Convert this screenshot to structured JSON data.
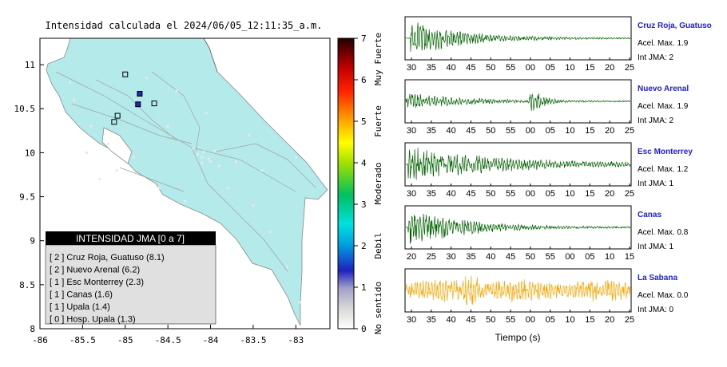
{
  "map": {
    "title": "Intensidad calculada el 2024/06/05_12:11:35_a.m.",
    "x_ticks": [
      "-86",
      "-85.5",
      "-85",
      "-84.5",
      "-84",
      "-83.5",
      "-83"
    ],
    "y_ticks": [
      "11",
      "10.5",
      "10",
      "9.5",
      "9",
      "8.5",
      "8"
    ],
    "colorbar": {
      "ticks": [
        "0",
        "1",
        "2",
        "3",
        "4",
        "5",
        "6",
        "7"
      ],
      "labels": [
        "No sentido",
        "Debil",
        "Moderado",
        "Fuerte",
        "Muy Fuerte"
      ]
    },
    "legend": {
      "title": "INTENSIDAD JMA [0 a 7]",
      "items": [
        "[ 2 ] Cruz Roja, Guatuso (8.1)",
        "[ 2 ] Nuevo Arenal (6.2)",
        "[ 1 ] Esc Monterrey (2.3)",
        "[ 1 ] Canas (1.6)",
        "[ 1 ] Upala (1.4)",
        "[ 0 ] Hosp. Upala (1.3)"
      ]
    },
    "colors": {
      "land": "#b4eaea",
      "border": "#777777",
      "legend_header": "#000000",
      "legend_body": "#e0e0e0"
    }
  },
  "chart_data": [
    {
      "type": "scatter",
      "title": "Intensidad calculada el 2024/06/05_12:11:35_a.m.",
      "xlim": [
        -86,
        -82.6
      ],
      "ylim": [
        8,
        11.3
      ],
      "series": [
        {
          "values": [
            {
              "x": -85.0,
              "y": 10.89,
              "intensity": 0
            },
            {
              "x": -84.83,
              "y": 10.67,
              "intensity": 2
            },
            {
              "x": -84.85,
              "y": 10.55,
              "intensity": 2
            },
            {
              "x": -84.66,
              "y": 10.56,
              "intensity": 1
            },
            {
              "x": -85.09,
              "y": 10.42,
              "intensity": 1
            },
            {
              "x": -85.13,
              "y": 10.35,
              "intensity": 1
            }
          ]
        }
      ]
    },
    {
      "type": "line",
      "label": "Cruz Roja, Guatuso",
      "info": [
        "Acel. Max. 1.9",
        "Int JMA: 2"
      ],
      "xticks": [
        "30",
        "35",
        "40",
        "45",
        "50",
        "55",
        "00",
        "05",
        "10",
        "15",
        "20",
        "25"
      ],
      "color": "#006400",
      "signal": {
        "onset": 0.02,
        "peak": 1.0,
        "decay": 0.22,
        "second_onset": null,
        "second_peak": 0
      }
    },
    {
      "type": "line",
      "label": "Nuevo Arenal",
      "info": [
        "Acel. Max. 1.9",
        "Int JMA: 2"
      ],
      "xticks": [
        "30",
        "35",
        "40",
        "45",
        "50",
        "55",
        "00",
        "05",
        "10",
        "15",
        "20",
        "25"
      ],
      "color": "#006400",
      "signal": {
        "onset": 0.0,
        "peak": 0.45,
        "decay": 0.25,
        "second_onset": 0.55,
        "second_peak": 1.0
      }
    },
    {
      "type": "line",
      "label": "Esc Monterrey",
      "info": [
        "Acel. Max. 1.2",
        "Int JMA: 1"
      ],
      "xticks": [
        "30",
        "35",
        "40",
        "45",
        "50",
        "55",
        "00",
        "05",
        "10",
        "15",
        "20",
        "25"
      ],
      "color": "#006400",
      "signal": {
        "onset": 0.01,
        "peak": 0.9,
        "decay": 0.45,
        "second_onset": null,
        "second_peak": 0
      }
    },
    {
      "type": "line",
      "label": "Canas",
      "info": [
        "Acel. Max. 0.8",
        "Int JMA: 1"
      ],
      "xticks": [
        "20",
        "25",
        "30",
        "35",
        "40",
        "45",
        "50",
        "55",
        "00",
        "05",
        "10",
        "15"
      ],
      "color": "#006400",
      "signal": {
        "onset": 0.01,
        "peak": 1.0,
        "decay": 0.25,
        "second_onset": null,
        "second_peak": 0
      }
    },
    {
      "type": "line",
      "label": "La Sabana",
      "info": [
        "Acel. Max. 0.0",
        "Int JMA: 0"
      ],
      "xticks": [
        "30",
        "35",
        "40",
        "45",
        "50",
        "55",
        "00",
        "05",
        "10",
        "15",
        "20",
        "25"
      ],
      "xlabel": "Tiempo (s)",
      "color": "#ffa500",
      "signal": {
        "onset": 0.0,
        "peak": 0.6,
        "decay": 1.2,
        "second_onset": null,
        "second_peak": 0
      }
    }
  ]
}
